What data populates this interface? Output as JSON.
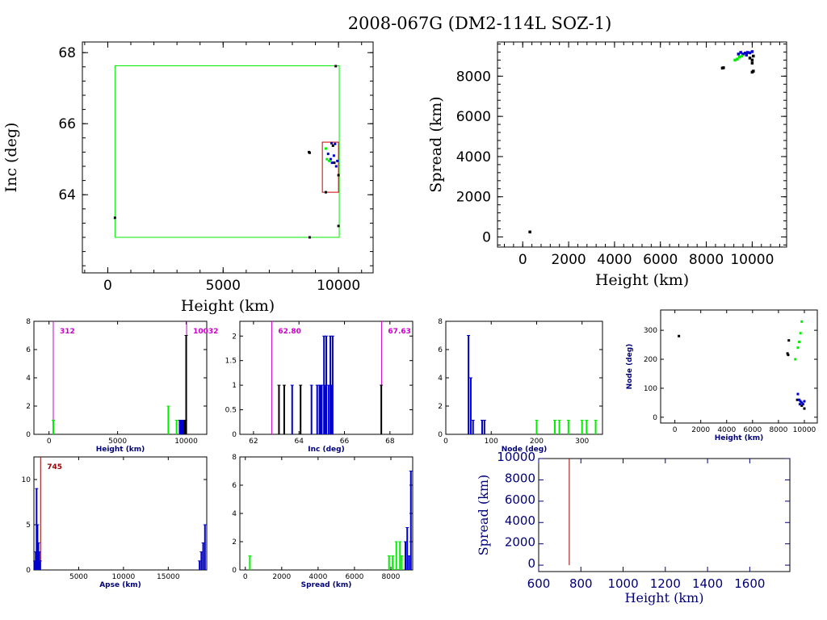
{
  "title": "2008-067G (DM2-114L SOZ-1)",
  "colors": {
    "green": "#00ee00",
    "blue": "#0000cc",
    "black": "#000000",
    "magenta": "#cc00cc",
    "darkred": "#990000",
    "navy": "#00007a",
    "red": "#cc0000"
  },
  "chart_data": [
    {
      "id": "inc_vs_height",
      "type": "scatter",
      "xlabel": "Height (km)",
      "ylabel": "Inc (deg)",
      "xlim": [
        -1100,
        11500
      ],
      "ylim": [
        61.8,
        68.3
      ],
      "xticks": [
        0,
        5000,
        10000
      ],
      "yticks": [
        64,
        66,
        68
      ],
      "box_green": {
        "x": [
          312,
          10032
        ],
        "y": [
          62.8,
          67.63
        ]
      },
      "box_red": {
        "x": [
          9300,
          10000
        ],
        "y": [
          64.07,
          65.48
        ]
      },
      "series": [
        {
          "name": "black",
          "color": "#000000",
          "points": [
            [
              9880,
              67.62
            ],
            [
              312,
              63.35
            ],
            [
              8750,
              62.8
            ],
            [
              10000,
              63.12
            ],
            [
              8720,
              65.2
            ],
            [
              8750,
              65.18
            ],
            [
              9450,
              64.07
            ],
            [
              9820,
              64.9
            ],
            [
              10000,
              64.55
            ],
            [
              9760,
              65.38
            ]
          ]
        },
        {
          "name": "blue",
          "color": "#0000cc",
          "points": [
            [
              9550,
              65.15
            ],
            [
              9660,
              65.0
            ],
            [
              9720,
              64.9
            ],
            [
              9800,
              65.1
            ],
            [
              9850,
              65.43
            ],
            [
              9950,
              64.95
            ],
            [
              9900,
              64.8
            ],
            [
              9700,
              65.45
            ]
          ]
        },
        {
          "name": "green",
          "color": "#00ee00",
          "points": [
            [
              9450,
              65.3
            ],
            [
              9500,
              65.0
            ],
            [
              9600,
              64.95
            ]
          ]
        }
      ]
    },
    {
      "id": "spread_vs_height",
      "type": "scatter",
      "xlabel": "Height (km)",
      "ylabel": "Spread (km)",
      "xlim": [
        -1100,
        11500
      ],
      "ylim": [
        -500,
        9700
      ],
      "xticks": [
        0,
        2000,
        4000,
        6000,
        8000,
        10000
      ],
      "yticks": [
        0,
        2000,
        4000,
        6000,
        8000
      ],
      "series": [
        {
          "name": "black",
          "color": "#000000",
          "points": [
            [
              312,
              250
            ],
            [
              8700,
              8400
            ],
            [
              8750,
              8420
            ],
            [
              10000,
              8200
            ],
            [
              10050,
              8250
            ],
            [
              10000,
              8650
            ],
            [
              10000,
              8800
            ],
            [
              9900,
              8900
            ],
            [
              10050,
              9000
            ]
          ]
        },
        {
          "name": "blue",
          "color": "#0000cc",
          "points": [
            [
              9400,
              9100
            ],
            [
              9500,
              9180
            ],
            [
              9600,
              9100
            ],
            [
              9700,
              9150
            ],
            [
              9800,
              9180
            ],
            [
              9900,
              9160
            ],
            [
              10000,
              9220
            ],
            [
              9750,
              9050
            ]
          ]
        },
        {
          "name": "green",
          "color": "#00ee00",
          "points": [
            [
              9250,
              8800
            ],
            [
              9350,
              8850
            ],
            [
              9450,
              8950
            ],
            [
              9550,
              9000
            ]
          ]
        }
      ]
    },
    {
      "id": "height_hist",
      "type": "bar",
      "xlabel": "Height (km)",
      "xlim": [
        -1100,
        11500
      ],
      "ylim": [
        0,
        8
      ],
      "xticks": [
        0,
        5000,
        10000
      ],
      "yticks": [
        0,
        2,
        4,
        6,
        8
      ],
      "marker_lines": [
        {
          "x": 312,
          "label": "312",
          "color": "#cc00cc"
        },
        {
          "x": 10032,
          "label": "10032",
          "color": "#cc00cc"
        }
      ],
      "series": [
        {
          "name": "green",
          "color": "#00ee00",
          "bars": [
            [
              312,
              1
            ],
            [
              8700,
              2
            ],
            [
              9300,
              1
            ],
            [
              9500,
              1
            ],
            [
              9700,
              1
            ]
          ]
        },
        {
          "name": "blue",
          "color": "#0000cc",
          "bars": [
            [
              9550,
              1
            ],
            [
              9650,
              1
            ],
            [
              9750,
              1
            ],
            [
              9850,
              1
            ],
            [
              9950,
              1
            ]
          ]
        },
        {
          "name": "black",
          "color": "#000000",
          "bars": [
            [
              10000,
              7
            ],
            [
              9900,
              1
            ]
          ]
        }
      ]
    },
    {
      "id": "inc_hist",
      "type": "bar",
      "xlabel": "Inc (deg)",
      "xlim": [
        61.4,
        69.0
      ],
      "ylim": [
        0,
        2.3
      ],
      "xticks": [
        62,
        64,
        66,
        68
      ],
      "yticks": [
        0,
        0.5,
        1,
        1.5,
        2
      ],
      "marker_lines": [
        {
          "x": 62.8,
          "label": "62.80",
          "color": "#cc00cc"
        },
        {
          "x": 67.63,
          "label": "67.63",
          "color": "#cc00cc"
        }
      ],
      "series": [
        {
          "name": "black",
          "color": "#000000",
          "bars": [
            [
              63.12,
              1
            ],
            [
              63.35,
              1
            ],
            [
              67.62,
              1
            ],
            [
              64.07,
              1
            ]
          ]
        },
        {
          "name": "blue",
          "color": "#0000cc",
          "bars": [
            [
              64.55,
              1
            ],
            [
              64.8,
              1
            ],
            [
              64.9,
              1
            ],
            [
              64.95,
              1
            ],
            [
              65.0,
              1
            ],
            [
              65.1,
              2
            ],
            [
              65.15,
              1
            ],
            [
              65.2,
              2
            ],
            [
              65.3,
              1
            ],
            [
              65.38,
              2
            ],
            [
              65.43,
              1
            ],
            [
              65.48,
              2
            ],
            [
              63.7,
              1
            ]
          ]
        }
      ]
    },
    {
      "id": "node_hist",
      "type": "bar",
      "xlabel": "Node (deg)",
      "xlim": [
        0,
        345
      ],
      "ylim": [
        0,
        8
      ],
      "xticks": [
        0,
        100,
        200,
        300
      ],
      "yticks": [
        0,
        2,
        4,
        6,
        8
      ],
      "series": [
        {
          "name": "blue",
          "color": "#0000cc",
          "bars": [
            [
              50,
              7
            ],
            [
              55,
              4
            ],
            [
              60,
              1
            ],
            [
              80,
              1
            ],
            [
              85,
              1
            ]
          ]
        },
        {
          "name": "green",
          "color": "#00ee00",
          "bars": [
            [
              200,
              1
            ],
            [
              240,
              1
            ],
            [
              250,
              1
            ],
            [
              270,
              1
            ],
            [
              300,
              1
            ],
            [
              310,
              1
            ],
            [
              330,
              1
            ]
          ]
        }
      ]
    },
    {
      "id": "node_vs_height",
      "type": "scatter",
      "xlabel": "Height (km)",
      "ylabel": "Node (deg)",
      "xlim": [
        -1100,
        11000
      ],
      "ylim": [
        -20,
        370
      ],
      "xticks": [
        0,
        2000,
        4000,
        6000,
        8000,
        10000
      ],
      "yticks": [
        0,
        100,
        200,
        300
      ],
      "series": [
        {
          "name": "black",
          "color": "#000000",
          "points": [
            [
              312,
              280
            ],
            [
              8700,
              220
            ],
            [
              8750,
              215
            ],
            [
              9450,
              60
            ],
            [
              10000,
              30
            ],
            [
              9800,
              40
            ],
            [
              8800,
              265
            ]
          ]
        },
        {
          "name": "blue",
          "color": "#0000cc",
          "points": [
            [
              9500,
              80
            ],
            [
              9600,
              60
            ],
            [
              9700,
              55
            ],
            [
              9800,
              50
            ],
            [
              9900,
              45
            ],
            [
              10000,
              55
            ],
            [
              9650,
              45
            ]
          ]
        },
        {
          "name": "green",
          "color": "#00ee00",
          "points": [
            [
              9300,
              200
            ],
            [
              9500,
              240
            ],
            [
              9600,
              260
            ],
            [
              9700,
              290
            ],
            [
              9800,
              330
            ]
          ]
        }
      ]
    },
    {
      "id": "apse_hist",
      "type": "bar",
      "xlabel": "Apse (km)",
      "xlim": [
        0,
        19300
      ],
      "ylim": [
        0,
        12.5
      ],
      "xticks": [
        5000,
        10000,
        15000
      ],
      "yticks": [
        0,
        5,
        10
      ],
      "marker_lines": [
        {
          "x": 745,
          "label": "745",
          "color": "#990000"
        }
      ],
      "series": [
        {
          "name": "blue",
          "color": "#0000cc",
          "bars": [
            [
              100,
              1
            ],
            [
              200,
              2
            ],
            [
              300,
              9
            ],
            [
              400,
              5
            ],
            [
              500,
              3
            ],
            [
              600,
              2
            ],
            [
              700,
              1
            ],
            [
              18500,
              1
            ],
            [
              18700,
              2
            ],
            [
              18900,
              3
            ],
            [
              19100,
              5
            ]
          ]
        }
      ]
    },
    {
      "id": "spread_hist",
      "type": "bar",
      "xlabel": "Spread (km)",
      "xlim": [
        -300,
        9200
      ],
      "ylim": [
        0,
        8
      ],
      "xticks": [
        0,
        2000,
        4000,
        6000,
        8000
      ],
      "yticks": [
        0,
        2,
        4,
        6,
        8
      ],
      "series": [
        {
          "name": "green",
          "color": "#00ee00",
          "bars": [
            [
              250,
              1
            ],
            [
              7900,
              1
            ],
            [
              8100,
              1
            ],
            [
              8300,
              2
            ],
            [
              8500,
              2
            ],
            [
              8600,
              1
            ]
          ]
        },
        {
          "name": "blue",
          "color": "#0000cc",
          "bars": [
            [
              8800,
              2
            ],
            [
              8900,
              3
            ],
            [
              9000,
              1
            ],
            [
              9100,
              7
            ]
          ]
        }
      ]
    },
    {
      "id": "spread_vs_height_lower",
      "type": "line",
      "xlabel": "Height (km)",
      "ylabel": "Spread (km)",
      "xlim": [
        600,
        1790
      ],
      "ylim": [
        -600,
        10000
      ],
      "xticks": [
        600,
        800,
        1000,
        1200,
        1400,
        1600
      ],
      "yticks": [
        0,
        2000,
        4000,
        6000,
        8000,
        10000
      ],
      "vline": {
        "x": 745,
        "y": [
          0,
          10000
        ],
        "color": "#990000"
      }
    }
  ]
}
